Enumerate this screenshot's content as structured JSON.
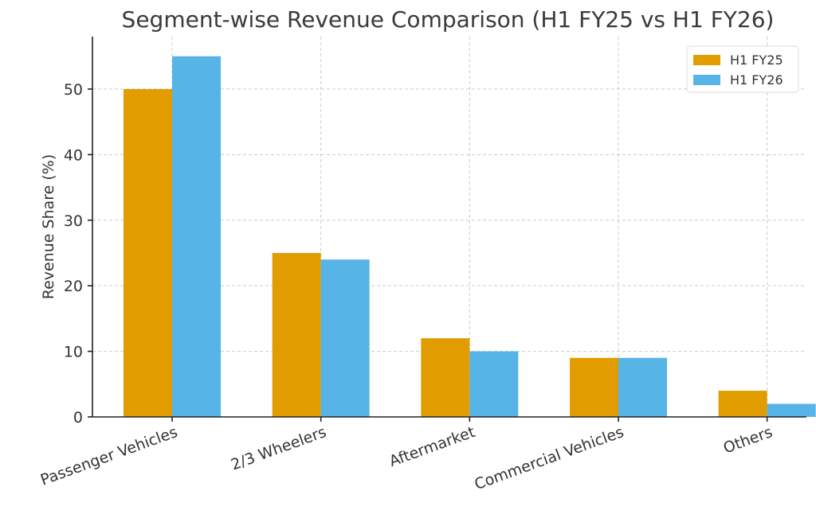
{
  "chart_data": {
    "type": "bar",
    "title": "Segment-wise Revenue Comparison (H1 FY25 vs H1 FY26)",
    "xlabel": "",
    "ylabel": "Revenue Share (%)",
    "ylim": [
      0,
      58
    ],
    "yticks": [
      0,
      10,
      20,
      30,
      40,
      50
    ],
    "grid": true,
    "legend_position": "top-right",
    "categories": [
      "Passenger Vehicles",
      "2/3 Wheelers",
      "Aftermarket",
      "Commercial Vehicles",
      "Others"
    ],
    "series": [
      {
        "name": "H1 FY25",
        "color": "#e19d00",
        "values": [
          50,
          25,
          12,
          9,
          4
        ]
      },
      {
        "name": "H1 FY26",
        "color": "#56b4e6",
        "values": [
          55,
          24,
          10,
          9,
          2
        ]
      }
    ]
  }
}
